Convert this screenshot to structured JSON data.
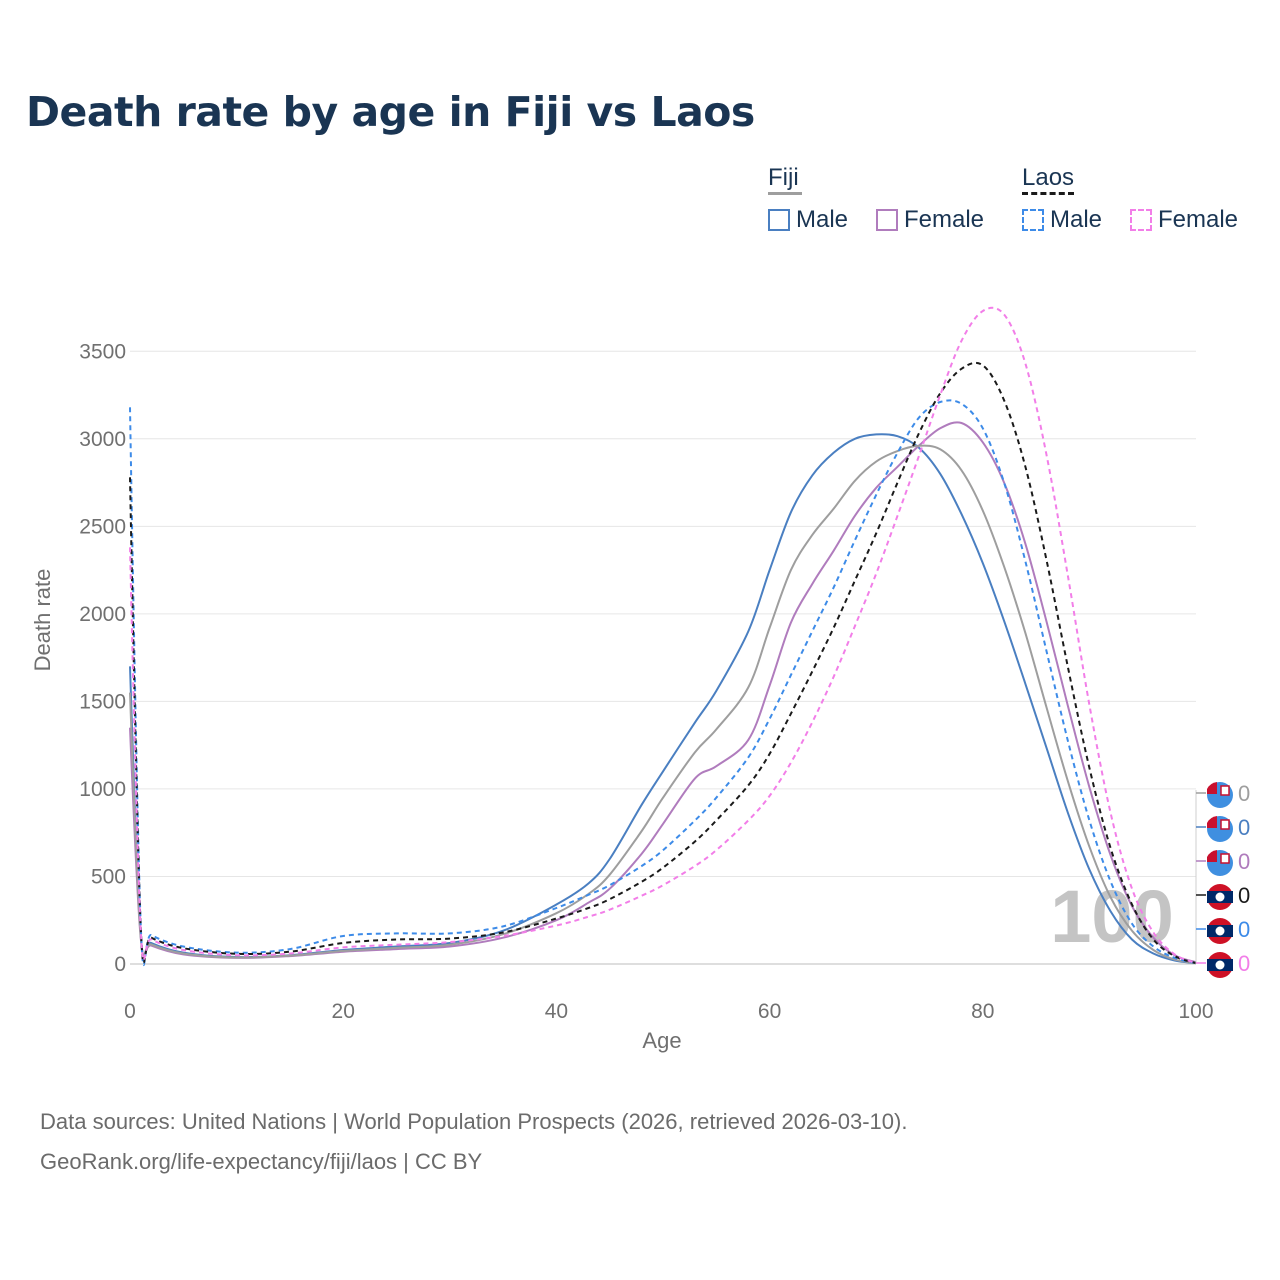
{
  "chart_data": {
    "type": "line",
    "title": "Death rate by age in Fiji vs Laos",
    "xlabel": "Age",
    "ylabel": "Death rate",
    "xlim": [
      0,
      100
    ],
    "ylim": [
      0,
      3700
    ],
    "xticks": [
      0,
      20,
      40,
      60,
      80,
      100
    ],
    "yticks": [
      0,
      500,
      1000,
      1500,
      2000,
      2500,
      3000,
      3500
    ],
    "watermark": "100",
    "legend_groups": [
      {
        "name": "Fiji",
        "style": "solid"
      },
      {
        "name": "Laos",
        "style": "dashed"
      }
    ],
    "series": [
      {
        "name": "Fiji Male",
        "country": "Fiji",
        "sex": "Male",
        "color": "#4a7fc1",
        "dash": "solid",
        "x": [
          0,
          1,
          2,
          5,
          10,
          15,
          20,
          25,
          30,
          35,
          40,
          43,
          45,
          48,
          50,
          53,
          55,
          58,
          60,
          62,
          64,
          66,
          68,
          70,
          72,
          74,
          76,
          78,
          80,
          82,
          84,
          86,
          88,
          90,
          92,
          94,
          96,
          98,
          100
        ],
        "values": [
          1700,
          170,
          120,
          65,
          40,
          50,
          80,
          100,
          120,
          190,
          340,
          460,
          600,
          910,
          1100,
          1380,
          1560,
          1900,
          2250,
          2580,
          2790,
          2920,
          3000,
          3025,
          3015,
          2950,
          2800,
          2570,
          2290,
          1960,
          1600,
          1230,
          860,
          540,
          300,
          140,
          60,
          20,
          5
        ]
      },
      {
        "name": "Fiji Female",
        "country": "Fiji",
        "sex": "Female",
        "color": "#b07cbd",
        "dash": "solid",
        "x": [
          0,
          1,
          2,
          5,
          10,
          15,
          20,
          25,
          30,
          35,
          40,
          43,
          45,
          48,
          50,
          53,
          55,
          58,
          60,
          62,
          64,
          66,
          68,
          70,
          72,
          74,
          76,
          78,
          80,
          82,
          84,
          86,
          88,
          90,
          92,
          94,
          96,
          98,
          100
        ],
        "values": [
          1350,
          150,
          105,
          55,
          35,
          45,
          70,
          85,
          100,
          150,
          250,
          350,
          430,
          630,
          800,
          1060,
          1130,
          1280,
          1590,
          1950,
          2170,
          2360,
          2560,
          2720,
          2840,
          2960,
          3060,
          3090,
          2980,
          2750,
          2400,
          1950,
          1470,
          1010,
          620,
          330,
          150,
          50,
          10
        ]
      },
      {
        "name": "Fiji Total",
        "country": "Fiji",
        "sex": "Total",
        "color": "#9e9e9e",
        "dash": "solid",
        "x": [
          0,
          1,
          2,
          5,
          10,
          15,
          20,
          25,
          30,
          35,
          40,
          43,
          45,
          48,
          50,
          53,
          55,
          58,
          60,
          62,
          64,
          66,
          68,
          70,
          72,
          74,
          76,
          78,
          80,
          82,
          84,
          86,
          88,
          90,
          92,
          94,
          96,
          98,
          100
        ],
        "values": [
          1550,
          160,
          112,
          60,
          37,
          48,
          75,
          92,
          110,
          170,
          290,
          400,
          510,
          760,
          950,
          1210,
          1340,
          1580,
          1920,
          2250,
          2450,
          2600,
          2760,
          2870,
          2930,
          2960,
          2940,
          2820,
          2590,
          2270,
          1890,
          1460,
          1040,
          670,
          380,
          190,
          80,
          25,
          5
        ]
      },
      {
        "name": "Laos Male",
        "country": "Laos",
        "sex": "Male",
        "color": "#3d8be8",
        "dash": "dashed",
        "x": [
          0,
          1,
          2,
          5,
          10,
          15,
          20,
          25,
          30,
          35,
          40,
          43,
          45,
          48,
          50,
          53,
          55,
          58,
          60,
          62,
          64,
          66,
          68,
          70,
          72,
          74,
          76,
          78,
          80,
          82,
          84,
          86,
          88,
          90,
          92,
          94,
          96,
          98,
          100
        ],
        "values": [
          3180,
          230,
          165,
          100,
          65,
          85,
          160,
          175,
          175,
          215,
          320,
          395,
          450,
          560,
          650,
          820,
          950,
          1180,
          1400,
          1650,
          1900,
          2150,
          2420,
          2680,
          2920,
          3120,
          3210,
          3200,
          3060,
          2750,
          2300,
          1780,
          1270,
          820,
          470,
          230,
          100,
          35,
          5
        ]
      },
      {
        "name": "Laos Total",
        "country": "Laos",
        "sex": "Total",
        "color": "#1a1a1a",
        "dash": "dashed",
        "x": [
          0,
          1,
          2,
          5,
          10,
          15,
          20,
          25,
          30,
          35,
          40,
          43,
          45,
          48,
          50,
          53,
          55,
          58,
          60,
          62,
          64,
          66,
          68,
          70,
          72,
          74,
          76,
          78,
          80,
          82,
          84,
          86,
          88,
          90,
          92,
          94,
          96,
          98,
          100
        ],
        "values": [
          2780,
          215,
          150,
          90,
          58,
          70,
          120,
          140,
          145,
          180,
          260,
          320,
          370,
          470,
          550,
          700,
          820,
          1020,
          1200,
          1430,
          1670,
          1920,
          2190,
          2460,
          2750,
          3030,
          3260,
          3400,
          3420,
          3220,
          2840,
          2300,
          1690,
          1120,
          660,
          340,
          140,
          45,
          5
        ]
      },
      {
        "name": "Laos Female",
        "country": "Laos",
        "sex": "Female",
        "color": "#f27ee8",
        "dash": "dashed",
        "x": [
          0,
          1,
          2,
          5,
          10,
          15,
          20,
          25,
          30,
          35,
          40,
          43,
          45,
          48,
          50,
          53,
          55,
          58,
          60,
          62,
          64,
          66,
          68,
          70,
          72,
          74,
          76,
          78,
          80,
          82,
          84,
          86,
          88,
          90,
          92,
          94,
          96,
          98,
          100
        ],
        "values": [
          2380,
          200,
          140,
          80,
          50,
          60,
          95,
          110,
          125,
          160,
          220,
          270,
          310,
          390,
          450,
          560,
          650,
          820,
          960,
          1150,
          1380,
          1640,
          1930,
          2230,
          2560,
          2900,
          3250,
          3560,
          3730,
          3710,
          3430,
          2900,
          2210,
          1480,
          860,
          430,
          180,
          55,
          5
        ]
      }
    ],
    "end_labels": [
      {
        "country": "Fiji",
        "flag": "fiji",
        "value": "0",
        "color": "#9e9e9e"
      },
      {
        "country": "Fiji",
        "flag": "fiji",
        "value": "0",
        "color": "#4a7fc1"
      },
      {
        "country": "Fiji",
        "flag": "fiji",
        "value": "0",
        "color": "#b07cbd"
      },
      {
        "country": "Laos",
        "flag": "laos",
        "value": "0",
        "color": "#1a1a1a"
      },
      {
        "country": "Laos",
        "flag": "laos",
        "value": "0",
        "color": "#3d8be8"
      },
      {
        "country": "Laos",
        "flag": "laos",
        "value": "0",
        "color": "#f27ee8"
      }
    ]
  },
  "legend": {
    "fiji_title": "Fiji",
    "laos_title": "Laos",
    "fiji_male": "Male",
    "fiji_female": "Female",
    "laos_male": "Male",
    "laos_female": "Female"
  },
  "footer": {
    "source_line": "Data sources: United Nations | World Population Prospects (2026, retrieved 2026-03-10).",
    "credit_line": "GeoRank.org/life-expectancy/fiji/laos | CC BY"
  }
}
